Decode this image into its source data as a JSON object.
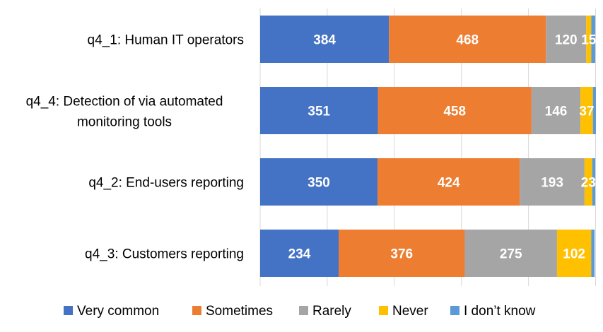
{
  "chart_data": {
    "type": "bar",
    "orientation": "horizontal",
    "stacked": true,
    "categories": [
      "q4_1: Human IT operators",
      "q4_4: Detection of via automated monitoring tools",
      "q4_2: End-users reporting",
      "q4_3: Customers reporting"
    ],
    "series": [
      {
        "name": "Very common",
        "color": "#4472c4",
        "values": [
          384,
          351,
          350,
          234
        ]
      },
      {
        "name": "Sometimes",
        "color": "#ed7d31",
        "values": [
          468,
          458,
          424,
          376
        ]
      },
      {
        "name": "Rarely",
        "color": "#a5a5a5",
        "values": [
          120,
          146,
          193,
          275
        ]
      },
      {
        "name": "Never",
        "color": "#ffc000",
        "values": [
          15,
          37,
          23,
          102
        ]
      },
      {
        "name": "I don’t know",
        "color": "#5b9bd5",
        "values": [
          12,
          9,
          9,
          10
        ]
      }
    ],
    "xlim": [
      0,
      1000
    ],
    "grid": true,
    "legend": "bottom",
    "data_labels": true
  }
}
